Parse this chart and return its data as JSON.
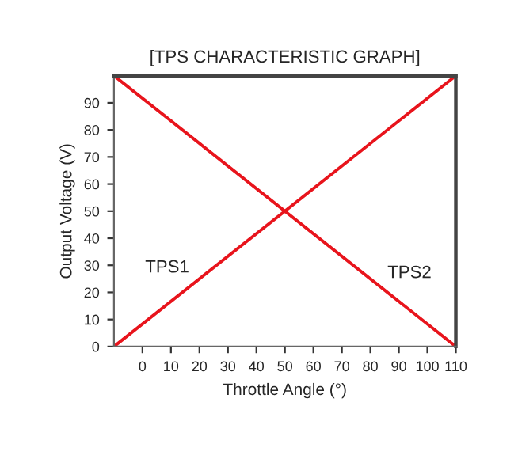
{
  "chart_data": {
    "type": "line",
    "title": "[TPS CHARACTERISTIC GRAPH]",
    "xlabel": "Throttle Angle (°)",
    "ylabel": "Output Voltage (V)",
    "x": [
      -10,
      110
    ],
    "series": [
      {
        "name": "TPS1",
        "color": "#e8141c",
        "values": [
          0,
          100
        ]
      },
      {
        "name": "TPS2",
        "color": "#e8141c",
        "values": [
          100,
          0
        ]
      }
    ],
    "xlim": [
      -10,
      110
    ],
    "xticks": [
      0,
      10,
      20,
      30,
      40,
      50,
      60,
      70,
      80,
      90,
      100,
      110
    ],
    "ylim": [
      0,
      100
    ],
    "yticks": [
      0,
      10,
      20,
      30,
      40,
      50,
      60,
      70,
      80,
      90
    ],
    "grid": false,
    "legend": false,
    "marker": "none",
    "line_style": "solid"
  }
}
